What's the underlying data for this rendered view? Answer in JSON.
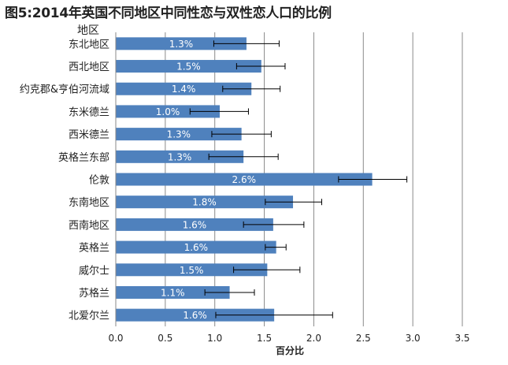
{
  "chart_data": {
    "type": "bar",
    "orientation": "horizontal",
    "title": "图5:2014年英国不同地区中同性恋与双性恋人口的比例",
    "ylabel": "地区",
    "xlabel": "百分比",
    "xlim": [
      0,
      3.5
    ],
    "xticks": [
      "0.0",
      "0.5",
      "1.0",
      "1.5",
      "2.0",
      "2.5",
      "3.0",
      "3.5"
    ],
    "grid": true,
    "bar_color": "#4F81BD",
    "categories": [
      "东北地区",
      "西北地区",
      "约克郡&亨伯河流域",
      "东米德兰",
      "西米德兰",
      "英格兰东部",
      "伦敦",
      "东南地区",
      "西南地区",
      "英格兰",
      "威尔士",
      "苏格兰",
      "北爱尔兰"
    ],
    "values": [
      1.32,
      1.47,
      1.37,
      1.05,
      1.27,
      1.29,
      2.59,
      1.79,
      1.59,
      1.62,
      1.53,
      1.15,
      1.6
    ],
    "data_labels": [
      "1.3%",
      "1.5%",
      "1.4%",
      "1.0%",
      "1.3%",
      "1.3%",
      "2.6%",
      "1.8%",
      "1.6%",
      "1.6%",
      "1.5%",
      "1.1%",
      "1.6%"
    ],
    "error_low": [
      0.99,
      1.22,
      1.08,
      0.75,
      0.97,
      0.94,
      2.25,
      1.51,
      1.29,
      1.51,
      1.19,
      0.9,
      1.01
    ],
    "error_high": [
      1.65,
      1.71,
      1.66,
      1.34,
      1.57,
      1.64,
      2.94,
      2.08,
      1.9,
      1.72,
      1.86,
      1.4,
      2.19
    ]
  }
}
